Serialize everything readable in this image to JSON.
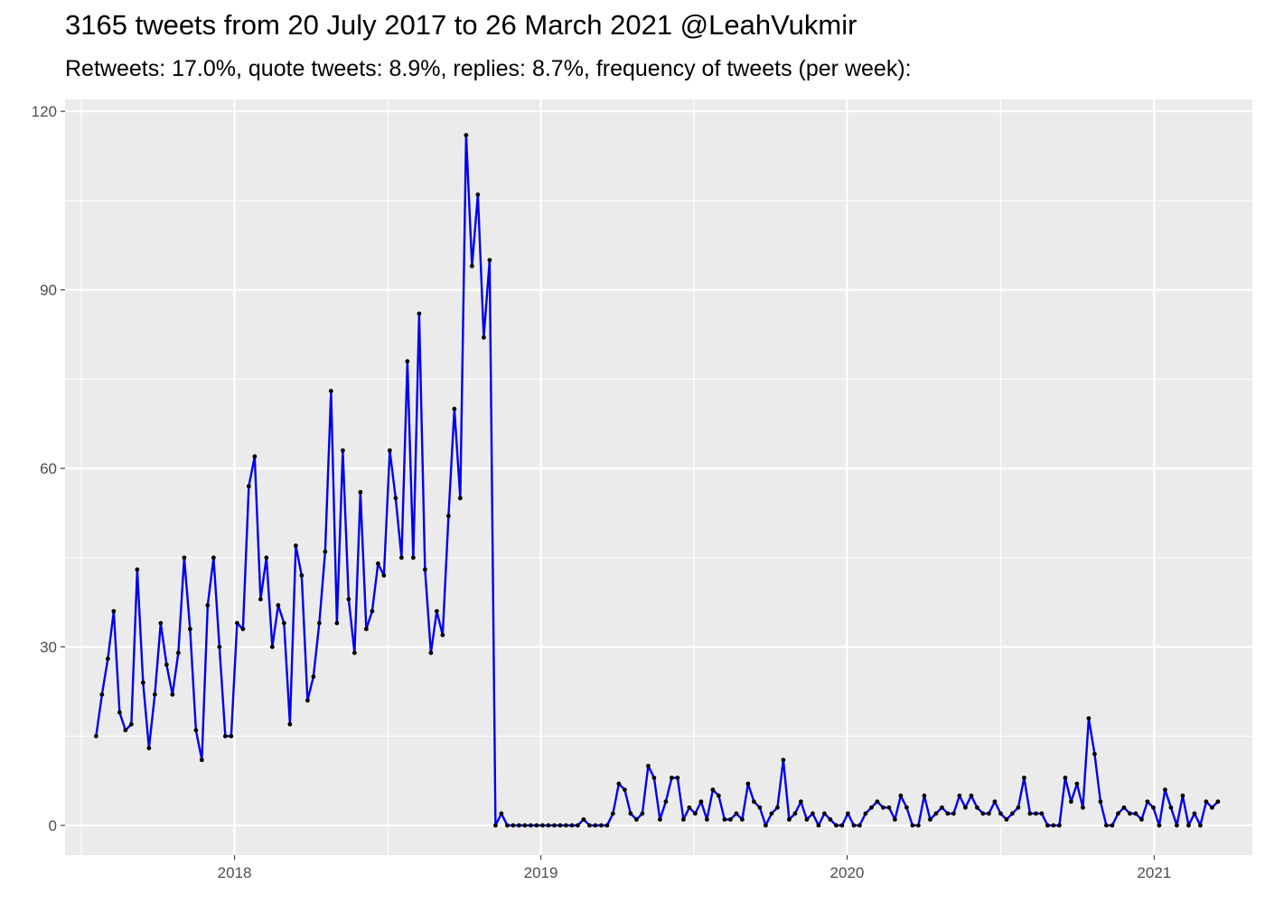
{
  "chart_data": {
    "type": "line",
    "title": "3165 tweets from 20 July 2017 to 26 March 2021 @LeahVukmir",
    "subtitle": "Retweets: 17.0%, quote tweets: 8.9%, replies: 8.7%, frequency of tweets (per week):",
    "xlabel": "",
    "ylabel": "",
    "ylim": [
      -5,
      122
    ],
    "xlim": [
      "2017-06-13",
      "2021-04-28"
    ],
    "y_ticks": [
      0,
      30,
      60,
      90,
      120
    ],
    "x_ticks": [
      {
        "label": "2018",
        "date": "2018-01-01"
      },
      {
        "label": "2019",
        "date": "2019-01-01"
      },
      {
        "label": "2020",
        "date": "2020-01-01"
      },
      {
        "label": "2021",
        "date": "2021-01-01"
      }
    ],
    "grid": true,
    "legend": "none",
    "start_date": "2017-07-20",
    "interval_days": 7,
    "values": [
      15,
      22,
      28,
      36,
      19,
      16,
      17,
      43,
      24,
      13,
      22,
      34,
      27,
      22,
      29,
      45,
      33,
      16,
      11,
      37,
      45,
      30,
      15,
      15,
      34,
      33,
      57,
      62,
      38,
      45,
      30,
      37,
      34,
      17,
      47,
      42,
      21,
      25,
      34,
      46,
      73,
      34,
      63,
      38,
      29,
      56,
      33,
      36,
      44,
      42,
      63,
      55,
      45,
      78,
      45,
      86,
      43,
      29,
      36,
      32,
      52,
      70,
      55,
      116,
      94,
      106,
      82,
      95,
      0,
      2,
      0,
      0,
      0,
      0,
      0,
      0,
      0,
      0,
      0,
      0,
      0,
      0,
      0,
      1,
      0,
      0,
      0,
      0,
      2,
      7,
      6,
      2,
      1,
      2,
      10,
      8,
      1,
      4,
      8,
      8,
      1,
      3,
      2,
      4,
      1,
      6,
      5,
      1,
      1,
      2,
      1,
      7,
      4,
      3,
      0,
      2,
      3,
      11,
      1,
      2,
      4,
      1,
      2,
      0,
      2,
      1,
      0,
      0,
      2,
      0,
      0,
      2,
      3,
      4,
      3,
      3,
      1,
      5,
      3,
      0,
      0,
      5,
      1,
      2,
      3,
      2,
      2,
      5,
      3,
      5,
      3,
      2,
      2,
      4,
      2,
      1,
      2,
      3,
      8,
      2,
      2,
      2,
      0,
      0,
      0,
      8,
      4,
      7,
      3,
      18,
      12,
      4,
      0,
      0,
      2,
      3,
      2,
      2,
      1,
      4,
      3,
      0,
      6,
      3,
      0,
      5,
      0,
      2,
      0,
      4,
      3,
      4
    ],
    "line_color": "#0000ee",
    "point_color": "#000000",
    "panel_background": "#ebebeb",
    "grid_color": "#ffffff"
  }
}
